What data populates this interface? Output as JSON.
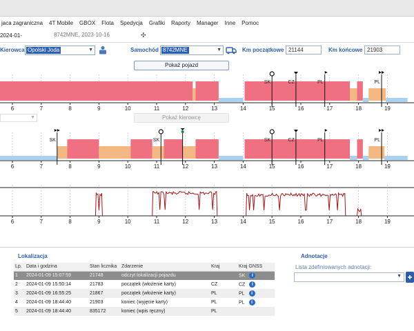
{
  "menu": [
    "jaca zagraniczna",
    "4T Mobile",
    "GBOX",
    "Flota",
    "Spedycja",
    "Grafiki",
    "Raporty",
    "Manager",
    "Inne",
    "Pomoc"
  ],
  "tabs": [
    {
      "label": "2024-01-",
      "active": true
    },
    {
      "label": "8742MNE, 2023-10-16",
      "active": false
    }
  ],
  "form": {
    "driver_label": "Kierowca",
    "driver_value": "Opolski Joda",
    "vehicle_label": "Samochód",
    "vehicle_value": "8742MNE",
    "km_start_label": "Km początkowe",
    "km_start_value": "21144",
    "km_end_label": "Km końcowe",
    "km_end_value": "21903"
  },
  "buttons": {
    "show_vehicle": "Pokaż pojazd",
    "show_driver": "Pokaż kierowcę"
  },
  "chart_data": [
    {
      "type": "timeline",
      "name": "vehicle",
      "x_ticks": [
        6,
        7,
        8,
        9,
        10,
        11,
        12,
        13,
        14,
        15,
        16,
        17,
        18,
        19
      ],
      "xlim": [
        5.55,
        19.7
      ],
      "segments": [
        {
          "from": 5.55,
          "to": 12.25,
          "state": "driving"
        },
        {
          "from": 12.25,
          "to": 12.35,
          "state": "other"
        },
        {
          "from": 12.35,
          "to": 13.15,
          "state": "driving"
        },
        {
          "from": 13.15,
          "to": 14.0,
          "state": "rest"
        },
        {
          "from": 14.05,
          "to": 16.85,
          "state": "driving"
        },
        {
          "from": 16.85,
          "to": 17.7,
          "state": "driving"
        },
        {
          "from": 17.7,
          "to": 17.95,
          "state": "other"
        },
        {
          "from": 17.95,
          "to": 18.15,
          "state": "driving"
        },
        {
          "from": 18.15,
          "to": 18.35,
          "state": "rest"
        },
        {
          "from": 18.35,
          "to": 18.95,
          "state": "other"
        },
        {
          "from": 18.95,
          "to": 19.7,
          "state": "rest"
        }
      ],
      "markers": [
        {
          "x": 15.0,
          "label": "SK",
          "icon": "pin"
        },
        {
          "x": 15.83,
          "label": "CZ",
          "icon": "triangle"
        },
        {
          "x": 16.83,
          "label": "PL",
          "icon": "flag"
        },
        {
          "x": 18.8,
          "label": "PL",
          "icon": "double-flag"
        }
      ]
    },
    {
      "type": "timeline",
      "name": "driver",
      "x_ticks": [
        6,
        7,
        8,
        9,
        10,
        11,
        12,
        13,
        14,
        15,
        16,
        17,
        18,
        19
      ],
      "xlim": [
        5.55,
        19.7
      ],
      "segments": [
        {
          "from": 5.55,
          "to": 7.55,
          "state": "rest"
        },
        {
          "from": 7.55,
          "to": 7.9,
          "state": "other"
        },
        {
          "from": 7.9,
          "to": 9.0,
          "state": "driving"
        },
        {
          "from": 9.0,
          "to": 10.1,
          "state": "other"
        },
        {
          "from": 10.1,
          "to": 10.85,
          "state": "driving"
        },
        {
          "from": 10.85,
          "to": 11.25,
          "state": "other"
        },
        {
          "from": 11.25,
          "to": 11.9,
          "state": "driving"
        },
        {
          "from": 11.9,
          "to": 12.35,
          "state": "other"
        },
        {
          "from": 12.35,
          "to": 13.15,
          "state": "driving"
        },
        {
          "from": 13.15,
          "to": 14.0,
          "state": "rest"
        },
        {
          "from": 14.05,
          "to": 17.7,
          "state": "driving"
        },
        {
          "from": 17.7,
          "to": 17.95,
          "state": "rest"
        },
        {
          "from": 17.95,
          "to": 18.15,
          "state": "driving"
        },
        {
          "from": 18.15,
          "to": 18.35,
          "state": "rest"
        },
        {
          "from": 18.35,
          "to": 18.9,
          "state": "other"
        },
        {
          "from": 18.9,
          "to": 19.7,
          "state": "rest"
        }
      ],
      "markers": [
        {
          "x": 7.55,
          "label": "SK",
          "icon": "double-flag"
        },
        {
          "x": 11.15,
          "label": "SK",
          "icon": "pin"
        },
        {
          "x": 11.9,
          "label": "",
          "icon": "stack"
        },
        {
          "x": 15.0,
          "label": "SK",
          "icon": "pin"
        },
        {
          "x": 15.83,
          "label": "CZ",
          "icon": "triangle"
        },
        {
          "x": 16.83,
          "label": "PL",
          "icon": "flag"
        },
        {
          "x": 18.8,
          "label": "PL",
          "icon": "double-flag"
        }
      ]
    },
    {
      "type": "line",
      "name": "speed",
      "x_ticks": [
        6,
        7,
        8,
        9,
        10,
        11,
        12,
        13,
        14,
        15,
        16,
        17,
        18,
        19
      ],
      "xlim": [
        5.55,
        19.7
      ],
      "ylim": [
        0,
        1
      ],
      "ranges": [
        {
          "from": 8.88,
          "to": 9.12,
          "level": 0.8
        },
        {
          "from": 10.85,
          "to": 13.1,
          "level": 0.86
        },
        {
          "from": 14.1,
          "to": 17.55,
          "level": 0.8
        },
        {
          "from": 17.95,
          "to": 18.1,
          "level": 0.25
        }
      ]
    }
  ],
  "legend_colors": {
    "driving": "#ef7081",
    "other": "#f4b882",
    "rest": "#a9d1f0",
    "speed": "#a81414"
  },
  "localization": {
    "title": "Lokalizacja",
    "columns": [
      "Lp.",
      "Data i godzina",
      "Stan licznika",
      "Zdarzenie",
      "Kraj",
      "Kraj GNSS"
    ],
    "rows": [
      [
        "1",
        "2024-01-09 15:07:59",
        "21748",
        "odczyt lokalizacji pojazdu",
        "",
        "SK"
      ],
      [
        "2",
        "2024-01-09 15:50:14",
        "21783",
        "początek (włożenie karty)",
        "CZ",
        "CZ"
      ],
      [
        "3",
        "2024-01-09 16:55:25",
        "21867",
        "początek (włożenie karty)",
        "PL",
        "PL"
      ],
      [
        "4",
        "2024-01-09 18:44:40",
        "21903",
        "koniec (wyjęcie karty)",
        "PL",
        "PL"
      ],
      [
        "5",
        "2024-01-09 18:44:40",
        "835172",
        "koniec (wpis ręczny)",
        "PL",
        ""
      ]
    ]
  },
  "annotation": {
    "title": "Adnotacje",
    "list_label": "Lista zdefiniowanych adnotacji:",
    "list_value": ""
  }
}
